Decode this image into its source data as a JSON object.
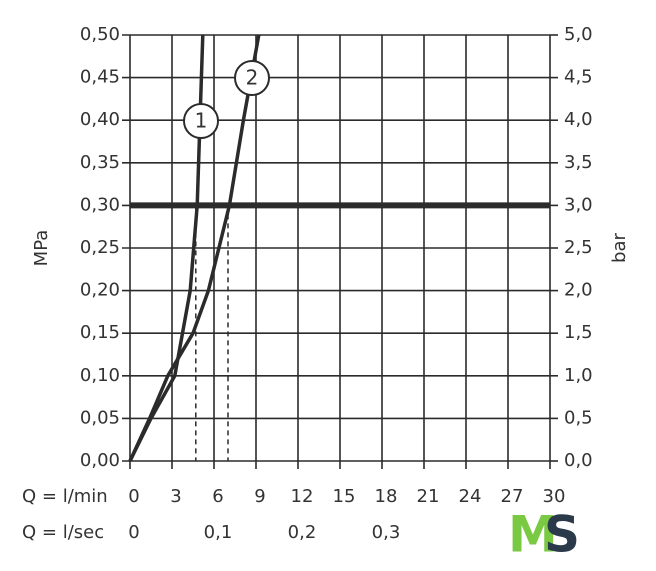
{
  "chart_data": {
    "type": "line",
    "y_label": "MPa",
    "y2_label": "bar",
    "x_label": "Q = l/min",
    "x2_label": "Q = l/sec",
    "xlim": [
      0,
      30
    ],
    "xticks": [
      0,
      3,
      6,
      9,
      12,
      15,
      18,
      21,
      24,
      27,
      30
    ],
    "x2lim": [
      0,
      0.5
    ],
    "x2ticks": [
      0,
      {
        "value": 0.1,
        "label": "0,1"
      },
      {
        "value": 0.2,
        "label": "0,2"
      },
      {
        "value": 0.3,
        "label": "0,3"
      }
    ],
    "ylim": [
      0,
      0.5
    ],
    "yticks": [
      {
        "value": 0,
        "label": "0,00"
      },
      {
        "value": 0.05,
        "label": "0,05"
      },
      {
        "value": 0.1,
        "label": "0,10"
      },
      {
        "value": 0.15,
        "label": "0,15"
      },
      {
        "value": 0.2,
        "label": "0,20"
      },
      {
        "value": 0.25,
        "label": "0,25"
      },
      {
        "value": 0.3,
        "label": "0,30"
      },
      {
        "value": 0.35,
        "label": "0,35"
      },
      {
        "value": 0.4,
        "label": "0,40"
      },
      {
        "value": 0.45,
        "label": "0,45"
      },
      {
        "value": 0.5,
        "label": "0,50"
      }
    ],
    "y2lim": [
      0,
      5
    ],
    "y2ticks": [
      {
        "value": 0,
        "label": "0,0"
      },
      {
        "value": 0.5,
        "label": "0,5"
      },
      {
        "value": 1,
        "label": "1,0"
      },
      {
        "value": 1.5,
        "label": "1,5"
      },
      {
        "value": 2,
        "label": "2,0"
      },
      {
        "value": 2.5,
        "label": "2,5"
      },
      {
        "value": 3,
        "label": "3,0"
      },
      {
        "value": 3.5,
        "label": "3,5"
      },
      {
        "value": 4,
        "label": "4,0"
      },
      {
        "value": 4.5,
        "label": "4,5"
      },
      {
        "value": 5,
        "label": "5,0"
      }
    ],
    "grid": true,
    "hline": 0.3,
    "reference_x": [
      4.7,
      7.0
    ],
    "series": [
      {
        "name": "1",
        "color": "#2b2b2b",
        "x": [
          0,
          1.5,
          3.2,
          4.3,
          4.8,
          5.0,
          5.2
        ],
        "values": [
          0,
          0.05,
          0.1,
          0.2,
          0.3,
          0.4,
          0.5
        ]
      },
      {
        "name": "2",
        "color": "#2b2b2b",
        "x": [
          0,
          1.4,
          2.7,
          4.5,
          5.6,
          7.1,
          8.1,
          9.2
        ],
        "values": [
          0,
          0.05,
          0.1,
          0.15,
          0.2,
          0.3,
          0.4,
          0.5
        ]
      }
    ],
    "logo": [
      "M",
      "S"
    ]
  }
}
